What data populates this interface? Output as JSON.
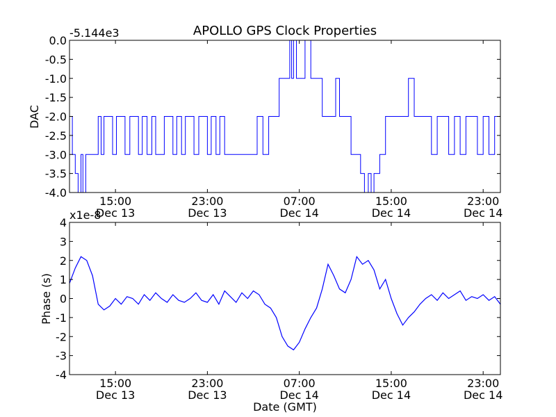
{
  "figure": {
    "title": "APOLLO GPS Clock Properties",
    "xlabel": "Date (GMT)"
  },
  "chart_data": [
    {
      "type": "line",
      "ylabel": "DAC",
      "offset_label": "-5.144e3",
      "x_ticks": [
        {
          "time": "15:00",
          "date": "Dec 13"
        },
        {
          "time": "23:00",
          "date": "Dec 13"
        },
        {
          "time": "07:00",
          "date": "Dec 14"
        },
        {
          "time": "15:00",
          "date": "Dec 14"
        },
        {
          "time": "23:00",
          "date": "Dec 14"
        }
      ],
      "y_ticks": [
        "0.0",
        "-0.5",
        "-1.0",
        "-1.5",
        "-2.0",
        "-2.5",
        "-3.0",
        "-3.5",
        "-4.0"
      ],
      "xlim": [
        "2013-12-13 11:00",
        "2013-12-15 00:30"
      ],
      "ylim": [
        -4.0,
        0.0
      ],
      "series": [
        {
          "color": "#0000ff",
          "x": [
            "2013-12-13 11:00",
            "2013-12-13 11:15",
            "2013-12-13 11:30",
            "2013-12-13 11:45",
            "2013-12-13 12:00",
            "2013-12-13 12:10",
            "2013-12-13 12:25",
            "2013-12-13 12:40",
            "2013-12-13 12:50",
            "2013-12-13 13:05",
            "2013-12-13 13:30",
            "2013-12-13 13:45",
            "2013-12-13 14:00",
            "2013-12-13 14:30",
            "2013-12-13 14:45",
            "2013-12-13 15:05",
            "2013-12-13 15:30",
            "2013-12-13 15:50",
            "2013-12-13 16:15",
            "2013-12-13 16:40",
            "2013-12-13 17:00",
            "2013-12-13 17:20",
            "2013-12-13 17:45",
            "2013-12-13 18:10",
            "2013-12-13 18:30",
            "2013-12-13 18:50",
            "2013-12-13 19:15",
            "2013-12-13 19:35",
            "2013-12-13 20:00",
            "2013-12-13 20:20",
            "2013-12-13 20:45",
            "2013-12-13 21:05",
            "2013-12-13 21:30",
            "2013-12-13 21:50",
            "2013-12-13 22:15",
            "2013-12-13 22:40",
            "2013-12-13 23:00",
            "2013-12-13 23:20",
            "2013-12-13 23:45",
            "2013-12-14 00:05",
            "2013-12-14 00:30",
            "2013-12-14 01:00",
            "2013-12-14 01:20",
            "2013-12-14 01:45",
            "2013-12-14 02:10",
            "2013-12-14 02:30",
            "2013-12-14 03:00",
            "2013-12-14 03:20",
            "2013-12-14 03:50",
            "2013-12-14 04:20",
            "2013-12-14 04:45",
            "2013-12-14 05:15",
            "2013-12-14 05:45",
            "2013-12-14 06:00",
            "2013-12-14 06:10",
            "2013-12-14 06:20",
            "2013-12-14 06:30",
            "2013-12-14 06:45",
            "2013-12-14 07:00",
            "2013-12-14 07:15",
            "2013-12-14 07:30",
            "2013-12-14 08:00",
            "2013-12-14 08:30",
            "2013-12-14 09:00",
            "2013-12-14 09:30",
            "2013-12-14 09:50",
            "2013-12-14 10:10",
            "2013-12-14 10:30",
            "2013-12-14 10:50",
            "2013-12-14 11:10",
            "2013-12-14 11:30",
            "2013-12-14 12:00",
            "2013-12-14 12:20",
            "2013-12-14 12:40",
            "2013-12-14 13:00",
            "2013-12-14 13:15",
            "2013-12-14 13:30",
            "2013-12-14 14:00",
            "2013-12-14 14:30",
            "2013-12-14 15:00",
            "2013-12-14 15:30",
            "2013-12-14 16:00",
            "2013-12-14 16:30",
            "2013-12-14 17:00",
            "2013-12-14 17:30",
            "2013-12-14 18:00",
            "2013-12-14 18:30",
            "2013-12-14 19:00",
            "2013-12-14 19:30",
            "2013-12-14 20:00",
            "2013-12-14 20:30",
            "2013-12-14 21:00",
            "2013-12-14 21:30",
            "2013-12-14 22:00",
            "2013-12-14 22:30",
            "2013-12-14 23:00",
            "2013-12-14 23:30",
            "2013-12-15 00:00",
            "2013-12-15 00:30"
          ],
          "y": [
            -2.0,
            -3.0,
            -3.5,
            -4.0,
            -3.0,
            -4.0,
            -3.0,
            -3.0,
            -3.0,
            -3.0,
            -2.0,
            -3.0,
            -2.0,
            -2.0,
            -3.0,
            -2.0,
            -2.0,
            -3.0,
            -2.0,
            -2.0,
            -3.0,
            -2.0,
            -3.0,
            -2.0,
            -3.0,
            -3.0,
            -2.0,
            -2.0,
            -3.0,
            -2.0,
            -3.0,
            -2.0,
            -2.0,
            -3.0,
            -2.0,
            -2.0,
            -3.0,
            -2.0,
            -3.0,
            -2.0,
            -3.0,
            -3.0,
            -3.0,
            -3.0,
            -3.0,
            -3.0,
            -3.0,
            -2.0,
            -3.0,
            -2.0,
            -2.0,
            -1.0,
            -1.0,
            -1.0,
            0.0,
            -1.0,
            0.0,
            -1.0,
            -1.0,
            -1.0,
            0.0,
            -1.0,
            -1.0,
            -2.0,
            -2.0,
            -2.0,
            -1.0,
            -2.0,
            -2.0,
            -2.0,
            -3.0,
            -3.0,
            -3.5,
            -4.0,
            -3.5,
            -4.0,
            -3.5,
            -3.0,
            -2.0,
            -2.0,
            -2.0,
            -2.0,
            -1.0,
            -2.0,
            -2.0,
            -2.0,
            -3.0,
            -2.0,
            -2.0,
            -3.0,
            -2.0,
            -3.0,
            -2.0,
            -2.0,
            -3.0,
            -2.0,
            -3.0,
            -2.0,
            -3.0
          ]
        }
      ]
    },
    {
      "type": "line",
      "ylabel": "Phase (s)",
      "offset_label": "x1e-8",
      "x_ticks": [
        {
          "time": "15:00",
          "date": "Dec 13"
        },
        {
          "time": "23:00",
          "date": "Dec 13"
        },
        {
          "time": "07:00",
          "date": "Dec 14"
        },
        {
          "time": "15:00",
          "date": "Dec 14"
        },
        {
          "time": "23:00",
          "date": "Dec 14"
        }
      ],
      "y_ticks": [
        "4",
        "3",
        "2",
        "1",
        "0",
        "-1",
        "-2",
        "-3",
        "-4"
      ],
      "xlim": [
        "2013-12-13 11:00",
        "2013-12-15 00:30"
      ],
      "ylim": [
        -4,
        4
      ],
      "series": [
        {
          "color": "#0000ff",
          "x": [
            "2013-12-13 11:00",
            "2013-12-13 11:30",
            "2013-12-13 12:00",
            "2013-12-13 12:30",
            "2013-12-13 13:00",
            "2013-12-13 13:30",
            "2013-12-13 14:00",
            "2013-12-13 14:30",
            "2013-12-13 15:00",
            "2013-12-13 15:30",
            "2013-12-13 16:00",
            "2013-12-13 16:30",
            "2013-12-13 17:00",
            "2013-12-13 17:30",
            "2013-12-13 18:00",
            "2013-12-13 18:30",
            "2013-12-13 19:00",
            "2013-12-13 19:30",
            "2013-12-13 20:00",
            "2013-12-13 20:30",
            "2013-12-13 21:00",
            "2013-12-13 21:30",
            "2013-12-13 22:00",
            "2013-12-13 22:30",
            "2013-12-13 23:00",
            "2013-12-13 23:30",
            "2013-12-14 00:00",
            "2013-12-14 00:30",
            "2013-12-14 01:00",
            "2013-12-14 01:30",
            "2013-12-14 02:00",
            "2013-12-14 02:30",
            "2013-12-14 03:00",
            "2013-12-14 03:30",
            "2013-12-14 04:00",
            "2013-12-14 04:30",
            "2013-12-14 05:00",
            "2013-12-14 05:30",
            "2013-12-14 06:00",
            "2013-12-14 06:30",
            "2013-12-14 07:00",
            "2013-12-14 07:30",
            "2013-12-14 08:00",
            "2013-12-14 08:30",
            "2013-12-14 09:00",
            "2013-12-14 09:30",
            "2013-12-14 10:00",
            "2013-12-14 10:30",
            "2013-12-14 11:00",
            "2013-12-14 11:30",
            "2013-12-14 12:00",
            "2013-12-14 12:30",
            "2013-12-14 13:00",
            "2013-12-14 13:30",
            "2013-12-14 14:00",
            "2013-12-14 14:30",
            "2013-12-14 15:00",
            "2013-12-14 15:30",
            "2013-12-14 16:00",
            "2013-12-14 16:30",
            "2013-12-14 17:00",
            "2013-12-14 17:30",
            "2013-12-14 18:00",
            "2013-12-14 18:30",
            "2013-12-14 19:00",
            "2013-12-14 19:30",
            "2013-12-14 20:00",
            "2013-12-14 20:30",
            "2013-12-14 21:00",
            "2013-12-14 21:30",
            "2013-12-14 22:00",
            "2013-12-14 22:30",
            "2013-12-14 23:00",
            "2013-12-14 23:30",
            "2013-12-15 00:00",
            "2013-12-15 00:30"
          ],
          "y": [
            0.8,
            1.6,
            2.2,
            2.0,
            1.2,
            -0.3,
            -0.6,
            -0.4,
            0.0,
            -0.3,
            0.1,
            0.0,
            -0.3,
            0.2,
            -0.1,
            0.3,
            0.0,
            -0.2,
            0.2,
            -0.1,
            -0.2,
            0.0,
            0.3,
            -0.1,
            -0.2,
            0.2,
            -0.3,
            0.4,
            0.1,
            -0.2,
            0.3,
            0.0,
            0.4,
            0.2,
            -0.3,
            -0.5,
            -1.0,
            -2.0,
            -2.5,
            -2.7,
            -2.3,
            -1.6,
            -1.0,
            -0.5,
            0.5,
            1.8,
            1.2,
            0.5,
            0.3,
            1.0,
            2.2,
            1.8,
            2.0,
            1.5,
            0.5,
            1.0,
            0.0,
            -0.8,
            -1.4,
            -1.0,
            -0.7,
            -0.3,
            0.0,
            0.2,
            -0.1,
            0.3,
            0.0,
            0.2,
            0.4,
            -0.1,
            0.1,
            0.0,
            0.2,
            -0.1,
            0.1,
            -0.3
          ]
        }
      ]
    }
  ]
}
